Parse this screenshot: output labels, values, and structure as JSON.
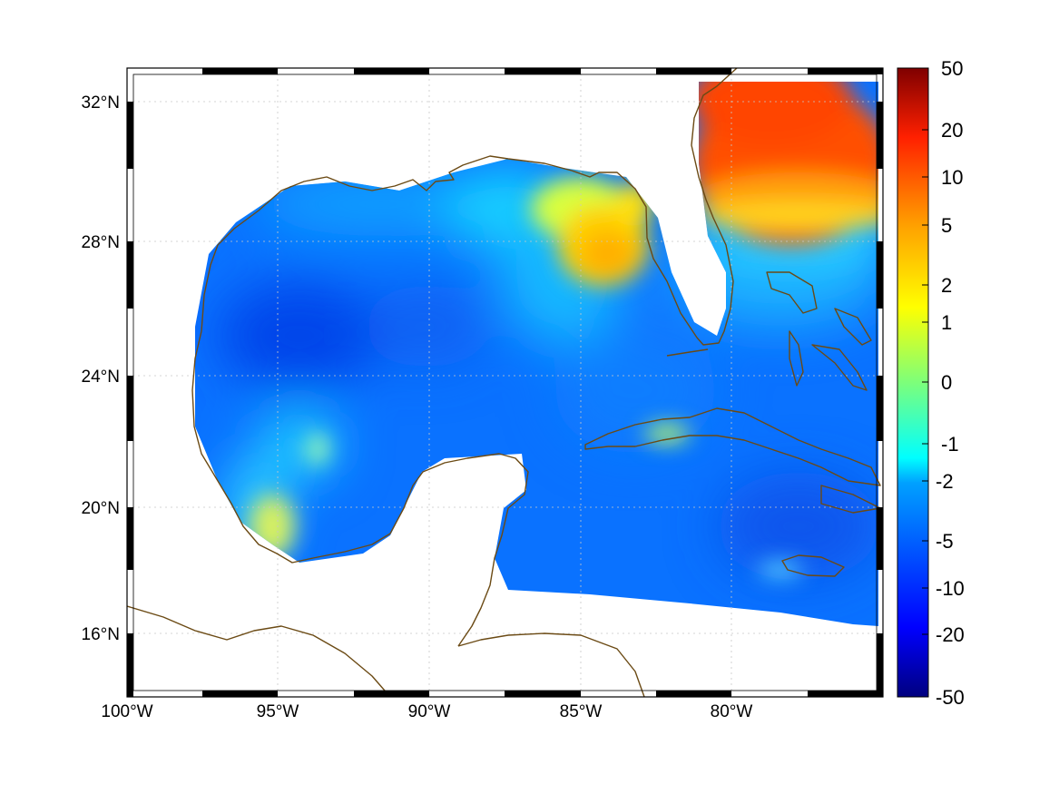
{
  "map": {
    "lon_ticks": [
      "100°W",
      "95°W",
      "90°W",
      "85°W",
      "80°W"
    ],
    "lat_ticks": [
      "32°N",
      "28°N",
      "24°N",
      "20°N",
      "16°N"
    ],
    "lon_range": [
      -100,
      -75
    ],
    "lat_range": [
      14.5,
      33
    ],
    "grid": true,
    "coastline_color": "#6b4a14"
  },
  "colorbar": {
    "ticks": [
      "50",
      "20",
      "10",
      "5",
      "2",
      "1",
      "0",
      "-1",
      "-2",
      "-5",
      "-10",
      "-20",
      "-50"
    ],
    "colormap": "jet",
    "position": "right"
  }
}
